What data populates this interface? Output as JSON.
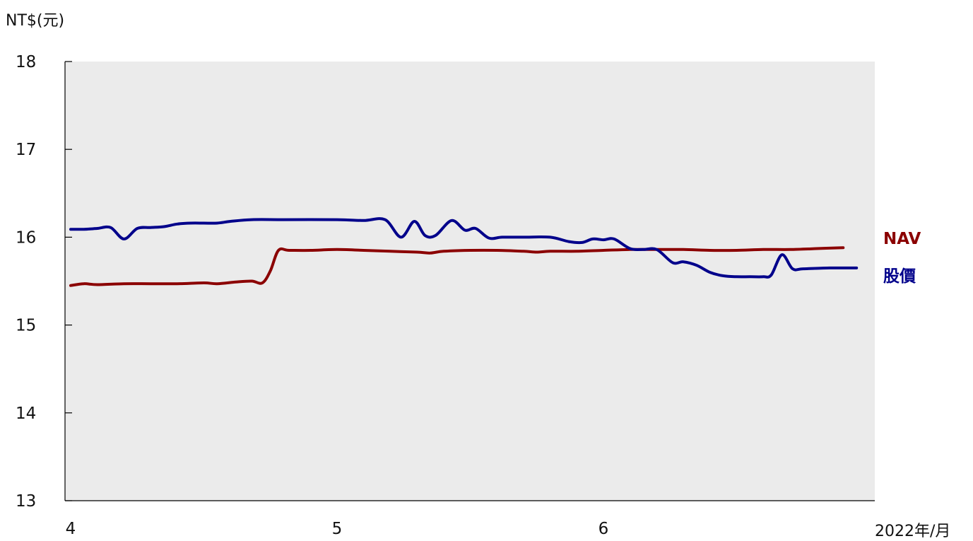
{
  "chart_data": {
    "type": "line",
    "y_unit_label": "NT$(元)",
    "x_unit_label": "2022年/月",
    "y_ticks": [
      "18",
      "17",
      "16",
      "15",
      "14",
      "13"
    ],
    "x_ticks": [
      {
        "label": "4",
        "month": 4
      },
      {
        "label": "5",
        "month": 5
      },
      {
        "label": "6",
        "month": 6
      }
    ],
    "ylim": [
      13,
      18
    ],
    "xlim": [
      4,
      6.95
    ],
    "grid": false,
    "plot_background": "#ebebeb",
    "series": [
      {
        "name": "NAV",
        "color": "#8b0000",
        "points": [
          [
            4.0,
            15.45
          ],
          [
            4.05,
            15.47
          ],
          [
            4.1,
            15.46
          ],
          [
            4.2,
            15.47
          ],
          [
            4.3,
            15.47
          ],
          [
            4.4,
            15.47
          ],
          [
            4.5,
            15.48
          ],
          [
            4.55,
            15.47
          ],
          [
            4.62,
            15.49
          ],
          [
            4.68,
            15.5
          ],
          [
            4.72,
            15.48
          ],
          [
            4.75,
            15.62
          ],
          [
            4.78,
            15.85
          ],
          [
            4.82,
            15.85
          ],
          [
            4.9,
            15.85
          ],
          [
            5.0,
            15.86
          ],
          [
            5.1,
            15.85
          ],
          [
            5.2,
            15.84
          ],
          [
            5.3,
            15.83
          ],
          [
            5.35,
            15.82
          ],
          [
            5.4,
            15.84
          ],
          [
            5.5,
            15.85
          ],
          [
            5.6,
            15.85
          ],
          [
            5.7,
            15.84
          ],
          [
            5.75,
            15.83
          ],
          [
            5.8,
            15.84
          ],
          [
            5.9,
            15.84
          ],
          [
            6.0,
            15.85
          ],
          [
            6.1,
            15.86
          ],
          [
            6.2,
            15.86
          ],
          [
            6.3,
            15.86
          ],
          [
            6.4,
            15.85
          ],
          [
            6.5,
            15.85
          ],
          [
            6.6,
            15.86
          ],
          [
            6.7,
            15.86
          ],
          [
            6.8,
            15.87
          ],
          [
            6.9,
            15.88
          ]
        ]
      },
      {
        "name": "股價",
        "color": "#00008b",
        "points": [
          [
            4.0,
            16.09
          ],
          [
            4.05,
            16.09
          ],
          [
            4.1,
            16.1
          ],
          [
            4.15,
            16.11
          ],
          [
            4.2,
            15.98
          ],
          [
            4.25,
            16.1
          ],
          [
            4.3,
            16.11
          ],
          [
            4.35,
            16.12
          ],
          [
            4.4,
            16.15
          ],
          [
            4.45,
            16.16
          ],
          [
            4.5,
            16.16
          ],
          [
            4.55,
            16.16
          ],
          [
            4.6,
            16.18
          ],
          [
            4.68,
            16.2
          ],
          [
            4.8,
            16.2
          ],
          [
            5.0,
            16.2
          ],
          [
            5.1,
            16.19
          ],
          [
            5.18,
            16.2
          ],
          [
            5.24,
            16.0
          ],
          [
            5.29,
            16.18
          ],
          [
            5.33,
            16.02
          ],
          [
            5.37,
            16.02
          ],
          [
            5.43,
            16.19
          ],
          [
            5.48,
            16.08
          ],
          [
            5.52,
            16.1
          ],
          [
            5.57,
            15.99
          ],
          [
            5.62,
            16.0
          ],
          [
            5.7,
            16.0
          ],
          [
            5.8,
            16.0
          ],
          [
            5.87,
            15.95
          ],
          [
            5.92,
            15.94
          ],
          [
            5.96,
            15.98
          ],
          [
            6.0,
            15.97
          ],
          [
            6.04,
            15.98
          ],
          [
            6.1,
            15.87
          ],
          [
            6.15,
            15.86
          ],
          [
            6.2,
            15.86
          ],
          [
            6.26,
            15.71
          ],
          [
            6.3,
            15.72
          ],
          [
            6.35,
            15.68
          ],
          [
            6.4,
            15.6
          ],
          [
            6.45,
            15.56
          ],
          [
            6.5,
            15.55
          ],
          [
            6.55,
            15.55
          ],
          [
            6.6,
            15.55
          ],
          [
            6.63,
            15.57
          ],
          [
            6.67,
            15.8
          ],
          [
            6.71,
            15.64
          ],
          [
            6.75,
            15.64
          ],
          [
            6.85,
            15.65
          ],
          [
            6.95,
            15.65
          ]
        ]
      }
    ]
  }
}
